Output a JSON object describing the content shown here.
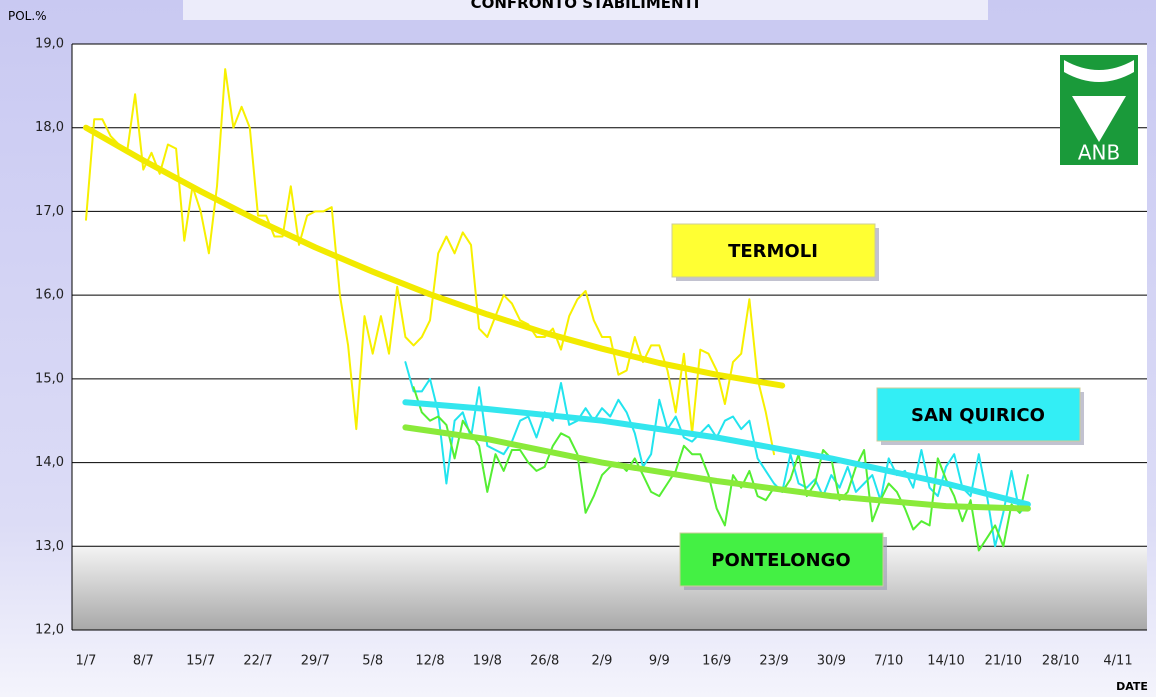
{
  "chart_data": {
    "type": "line",
    "title": "CONFRONTO STABILIMENTI",
    "y_label": "POL.%",
    "x_label": "DATE",
    "logo": "ANB",
    "ylim": [
      12,
      19
    ],
    "yticks": [
      {
        "value": 12,
        "label": "12,0"
      },
      {
        "value": 13,
        "label": "13,0"
      },
      {
        "value": 14,
        "label": "14,0"
      },
      {
        "value": 15,
        "label": "15,0"
      },
      {
        "value": 16,
        "label": "16,0"
      },
      {
        "value": 17,
        "label": "17,0"
      },
      {
        "value": 18,
        "label": "18,0"
      },
      {
        "value": 19,
        "label": "19,0"
      }
    ],
    "xticks": [
      "1/7",
      "8/7",
      "15/7",
      "22/7",
      "29/7",
      "5/8",
      "12/8",
      "19/8",
      "26/8",
      "2/9",
      "9/9",
      "16/9",
      "23/9",
      "30/9",
      "7/10",
      "14/10",
      "21/10",
      "28/10",
      "4/11"
    ],
    "grid": true,
    "series": [
      {
        "name": "TERMOLI",
        "color": "#f7f000",
        "label_color": "#ffff33",
        "x": [
          "1/7",
          "2/7",
          "3/7",
          "4/7",
          "5/7",
          "6/7",
          "7/7",
          "8/7",
          "9/7",
          "10/7",
          "11/7",
          "12/7",
          "13/7",
          "14/7",
          "15/7",
          "16/7",
          "17/7",
          "18/7",
          "19/7",
          "20/7",
          "21/7",
          "22/7",
          "23/7",
          "24/7",
          "25/7",
          "26/7",
          "27/7",
          "28/7",
          "29/7",
          "30/7",
          "31/7",
          "1/8",
          "2/8",
          "3/8",
          "4/8",
          "5/8",
          "6/8",
          "7/8",
          "8/8",
          "9/8",
          "10/8",
          "11/8",
          "12/8",
          "13/8",
          "14/8",
          "15/8",
          "16/8",
          "17/8",
          "18/8",
          "19/8",
          "20/8",
          "21/8",
          "22/8",
          "23/8",
          "24/8",
          "25/8",
          "26/8",
          "27/8",
          "28/8",
          "29/8",
          "30/8",
          "31/8",
          "1/9",
          "2/9",
          "3/9",
          "4/9",
          "5/9",
          "6/9",
          "7/9",
          "8/9",
          "9/9",
          "10/9",
          "11/9",
          "12/9",
          "13/9",
          "14/9",
          "15/9",
          "16/9",
          "17/9",
          "18/9",
          "19/9",
          "20/9",
          "21/9",
          "22/9",
          "23/9"
        ],
        "values": [
          16.9,
          18.1,
          18.1,
          17.9,
          17.8,
          17.7,
          18.4,
          17.5,
          17.7,
          17.45,
          17.8,
          17.75,
          16.65,
          17.3,
          17.0,
          16.5,
          17.3,
          18.7,
          18.0,
          18.25,
          18.0,
          16.95,
          16.95,
          16.7,
          16.7,
          17.3,
          16.6,
          16.95,
          17.0,
          17.0,
          17.05,
          16.0,
          15.4,
          14.4,
          15.75,
          15.3,
          15.75,
          15.3,
          16.1,
          15.5,
          15.4,
          15.5,
          15.7,
          16.5,
          16.7,
          16.5,
          16.75,
          16.6,
          15.6,
          15.5,
          15.75,
          16.0,
          15.9,
          15.7,
          15.65,
          15.5,
          15.5,
          15.6,
          15.35,
          15.75,
          15.95,
          16.05,
          15.7,
          15.5,
          15.5,
          15.05,
          15.1,
          15.5,
          15.2,
          15.4,
          15.4,
          15.1,
          14.6,
          15.3,
          14.35,
          15.35,
          15.3,
          15.1,
          14.7,
          15.2,
          15.3,
          15.95,
          15.0,
          14.6,
          14.1
        ],
        "trend": {
          "color": "#f2ea00",
          "x": [
            "1/7",
            "8/7",
            "15/7",
            "22/7",
            "29/7",
            "5/8",
            "12/8",
            "19/8",
            "26/8",
            "2/9",
            "9/9",
            "16/9",
            "24/9"
          ],
          "values": [
            18.0,
            17.61,
            17.24,
            16.89,
            16.57,
            16.28,
            16.01,
            15.77,
            15.55,
            15.36,
            15.19,
            15.05,
            14.92
          ]
        }
      },
      {
        "name": "SAN QUIRICO",
        "color": "#22e4ee",
        "label_color": "#33eef5",
        "x": [
          "9/8",
          "10/8",
          "11/8",
          "12/8",
          "13/8",
          "14/8",
          "15/8",
          "16/8",
          "17/8",
          "18/8",
          "19/8",
          "20/8",
          "21/8",
          "22/8",
          "23/8",
          "24/8",
          "25/8",
          "26/8",
          "27/8",
          "28/8",
          "29/8",
          "30/8",
          "31/8",
          "1/9",
          "2/9",
          "3/9",
          "4/9",
          "5/9",
          "6/9",
          "7/9",
          "8/9",
          "9/9",
          "10/9",
          "11/9",
          "12/9",
          "13/9",
          "14/9",
          "15/9",
          "16/9",
          "17/9",
          "18/9",
          "19/9",
          "20/9",
          "21/9",
          "22/9",
          "23/9",
          "24/9",
          "25/9",
          "26/9",
          "27/9",
          "28/9",
          "29/9",
          "30/9",
          "1/10",
          "2/10",
          "3/10",
          "4/10",
          "5/10",
          "6/10",
          "7/10",
          "8/10",
          "9/10",
          "10/10",
          "11/10",
          "12/10",
          "13/10",
          "14/10",
          "15/10",
          "16/10",
          "17/10",
          "18/10",
          "19/10",
          "20/10",
          "21/10",
          "22/10",
          "23/10",
          "24/10"
        ],
        "values": [
          15.2,
          14.85,
          14.85,
          15.0,
          14.6,
          13.75,
          14.5,
          14.6,
          14.3,
          14.9,
          14.2,
          14.15,
          14.1,
          14.25,
          14.5,
          14.55,
          14.3,
          14.6,
          14.5,
          14.95,
          14.45,
          14.5,
          14.65,
          14.5,
          14.65,
          14.55,
          14.75,
          14.6,
          14.35,
          13.95,
          14.1,
          14.75,
          14.4,
          14.55,
          14.3,
          14.25,
          14.35,
          14.45,
          14.3,
          14.5,
          14.55,
          14.4,
          14.5,
          14.05,
          13.9,
          13.75,
          13.65,
          14.1,
          13.75,
          13.7,
          13.8,
          13.6,
          13.85,
          13.7,
          13.95,
          13.65,
          13.75,
          13.85,
          13.55,
          14.05,
          13.85,
          13.9,
          13.7,
          14.15,
          13.7,
          13.6,
          13.95,
          14.1,
          13.7,
          13.6,
          14.1,
          13.6,
          13.0,
          13.4,
          13.9,
          13.4,
          13.5
        ],
        "trend": {
          "color": "#33e6ee",
          "x": [
            "9/8",
            "19/8",
            "2/9",
            "16/9",
            "30/9",
            "14/10",
            "24/10"
          ],
          "values": [
            14.72,
            14.64,
            14.5,
            14.3,
            14.05,
            13.75,
            13.5
          ]
        }
      },
      {
        "name": "PONTELONGO",
        "color": "#55ee33",
        "label_color": "#44f044",
        "x": [
          "10/8",
          "11/8",
          "12/8",
          "13/8",
          "14/8",
          "15/8",
          "16/8",
          "17/8",
          "18/8",
          "19/8",
          "20/8",
          "21/8",
          "22/8",
          "23/8",
          "24/8",
          "25/8",
          "26/8",
          "27/8",
          "28/8",
          "29/8",
          "30/8",
          "31/8",
          "1/9",
          "2/9",
          "3/9",
          "4/9",
          "5/9",
          "6/9",
          "7/9",
          "8/9",
          "9/9",
          "10/9",
          "11/9",
          "12/9",
          "13/9",
          "14/9",
          "15/9",
          "16/9",
          "17/9",
          "18/9",
          "19/9",
          "20/9",
          "21/9",
          "22/9",
          "23/9",
          "24/9",
          "25/9",
          "26/9",
          "27/9",
          "28/9",
          "29/9",
          "30/9",
          "1/10",
          "2/10",
          "3/10",
          "4/10",
          "5/10",
          "6/10",
          "7/10",
          "8/10",
          "9/10",
          "10/10",
          "11/10",
          "12/10",
          "13/10",
          "14/10",
          "15/10",
          "16/10",
          "17/10",
          "18/10",
          "19/10",
          "20/10",
          "21/10",
          "22/10",
          "23/10",
          "24/10"
        ],
        "values": [
          14.9,
          14.6,
          14.5,
          14.55,
          14.45,
          14.05,
          14.5,
          14.35,
          14.2,
          13.65,
          14.1,
          13.9,
          14.15,
          14.15,
          14.0,
          13.9,
          13.95,
          14.2,
          14.35,
          14.3,
          14.1,
          13.4,
          13.6,
          13.85,
          13.95,
          14.0,
          13.9,
          14.05,
          13.85,
          13.65,
          13.6,
          13.75,
          13.9,
          14.2,
          14.1,
          14.1,
          13.85,
          13.45,
          13.25,
          13.85,
          13.7,
          13.9,
          13.6,
          13.55,
          13.7,
          13.65,
          13.8,
          14.1,
          13.6,
          13.75,
          14.15,
          14.05,
          13.55,
          13.65,
          13.95,
          14.15,
          13.3,
          13.55,
          13.75,
          13.65,
          13.45,
          13.2,
          13.3,
          13.25,
          14.05,
          13.8,
          13.6,
          13.3,
          13.55,
          12.95,
          13.1,
          13.25,
          13.0,
          13.5,
          13.4,
          13.85
        ],
        "trend": {
          "color": "#8aea3a",
          "x": [
            "9/8",
            "19/8",
            "2/9",
            "16/9",
            "30/9",
            "14/10",
            "24/10"
          ],
          "values": [
            14.42,
            14.28,
            14.0,
            13.78,
            13.6,
            13.48,
            13.45
          ]
        }
      }
    ]
  }
}
